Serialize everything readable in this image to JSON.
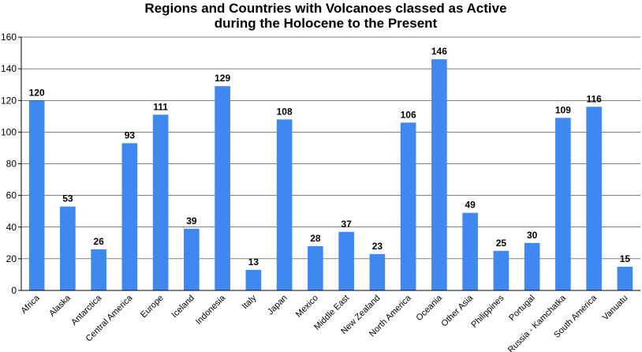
{
  "chart_data": {
    "type": "bar",
    "title": [
      "Regions and Countries with Volcanoes classed as Active",
      "during the Holocene to the Present"
    ],
    "xlabel": "",
    "ylabel": "",
    "ylim": [
      0,
      160
    ],
    "yticks": [
      0,
      20,
      40,
      60,
      80,
      100,
      120,
      140,
      160
    ],
    "grid": true,
    "color": "#3f88f0",
    "categories": [
      "Africa",
      "Alaska",
      "Antarctica",
      "Central America",
      "Europe",
      "Iceland",
      "Indonesia",
      "Italy",
      "Japan",
      "Mexico",
      "Middle East",
      "New Zealand",
      "North America",
      "Oceania",
      "Other Asia",
      "Philippines",
      "Portugal",
      "Russia - Kamchatka",
      "South America",
      "Vanuatu"
    ],
    "values": [
      120,
      53,
      26,
      93,
      111,
      39,
      129,
      13,
      108,
      28,
      37,
      23,
      106,
      146,
      49,
      25,
      30,
      109,
      116,
      15
    ]
  }
}
